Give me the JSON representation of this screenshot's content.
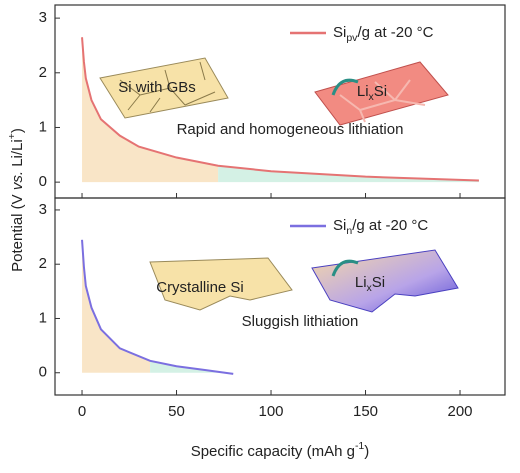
{
  "chart_data": [
    {
      "type": "line",
      "ylabel": [
        "Potential (V ",
        "vs.",
        " Li/Li",
        "+",
        ")"
      ],
      "series": [
        {
          "name": [
            "Si",
            "pv",
            "/g at -20 °C"
          ],
          "color": "#e57373",
          "x": [
            0,
            1,
            2,
            5,
            10,
            20,
            30,
            50,
            72,
            100,
            150,
            210
          ],
          "values": [
            2.65,
            2.2,
            1.9,
            1.5,
            1.15,
            0.85,
            0.65,
            0.45,
            0.3,
            0.2,
            0.1,
            0.03
          ]
        }
      ],
      "regions": [
        {
          "x_range": [
            0,
            72
          ],
          "color": "#f8e1bd"
        },
        {
          "x_range": [
            72,
            210
          ],
          "color": "#cdeee0"
        }
      ],
      "xlim": [
        -14.3,
        223.8
      ],
      "xticks": [
        0,
        50,
        100,
        150,
        200
      ],
      "ylim": [
        -0.29,
        3.24
      ],
      "yticks": [
        0,
        1,
        2,
        3
      ],
      "annotations": [
        [
          "Si with GBs"
        ],
        [
          "Li",
          "x",
          "Si"
        ],
        [
          "Rapid and homogeneous lithiation"
        ]
      ]
    },
    {
      "type": "line",
      "xlabel": [
        "Specific capacity (mAh g",
        "-1",
        ")"
      ],
      "series": [
        {
          "name": [
            "Si",
            "n",
            "/g at -20 °C"
          ],
          "color": "#7b6fe0",
          "x": [
            0,
            1,
            2,
            5,
            10,
            20,
            36,
            50,
            65,
            80
          ],
          "values": [
            2.45,
            1.95,
            1.6,
            1.2,
            0.8,
            0.45,
            0.22,
            0.12,
            0.05,
            -0.02
          ]
        }
      ],
      "regions": [
        {
          "x_range": [
            0,
            36
          ],
          "color": "#f8e1bd"
        },
        {
          "x_range": [
            36,
            80
          ],
          "color": "#cdeee0"
        }
      ],
      "xlim": [
        -14.3,
        223.8
      ],
      "xticks": [
        0,
        50,
        100,
        150,
        200
      ],
      "ylim": [
        -0.41,
        3.22
      ],
      "yticks": [
        0,
        1,
        2,
        3
      ],
      "annotations": [
        [
          "Crystalline Si"
        ],
        [
          "Li",
          "x",
          "Si"
        ],
        [
          "Sluggish lithiation"
        ]
      ]
    }
  ]
}
